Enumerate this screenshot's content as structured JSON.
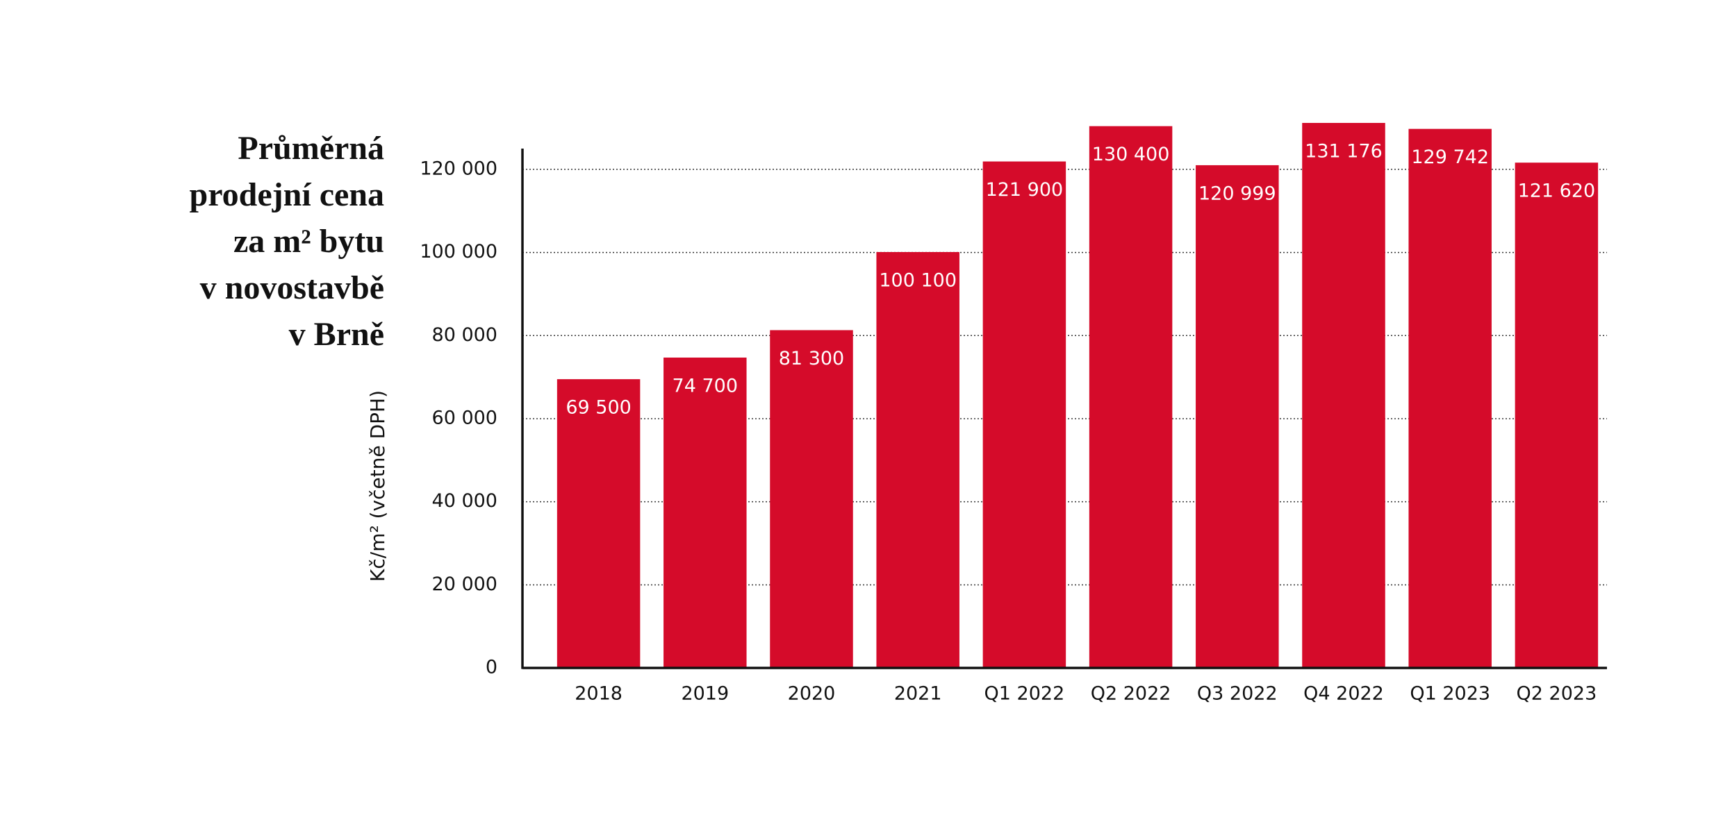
{
  "chart_data": {
    "type": "bar",
    "title": [
      "Průměrná",
      "prodejní cena",
      "za m² bytu",
      "v novostavbě",
      "v Brně"
    ],
    "y_label": "Kč/m² (včetně DPH)",
    "categories": [
      "2018",
      "2019",
      "2020",
      "2021",
      "Q1 2022",
      "Q2 2022",
      "Q3 2022",
      "Q4 2022",
      "Q1 2023",
      "Q2 2023"
    ],
    "values": [
      69500,
      74700,
      81300,
      100100,
      121900,
      130400,
      120999,
      131176,
      129742,
      121620
    ],
    "value_labels": [
      "69 500",
      "74 700",
      "81 300",
      "100 100",
      "121 900",
      "130 400",
      "120 999",
      "131 176",
      "129 742",
      "121 620"
    ],
    "color": "#d50b2a",
    "ylim": [
      0,
      125000
    ],
    "yticks": [
      0,
      {
        "value": 20000,
        "label": "20 000"
      },
      {
        "value": 40000,
        "label": "40 000"
      },
      {
        "value": 60000,
        "label": "60 000"
      },
      {
        "value": 80000,
        "label": "80 000"
      },
      {
        "value": 100000,
        "label": "100 000"
      },
      {
        "value": 120000,
        "label": "120 000"
      }
    ],
    "grid": true
  }
}
